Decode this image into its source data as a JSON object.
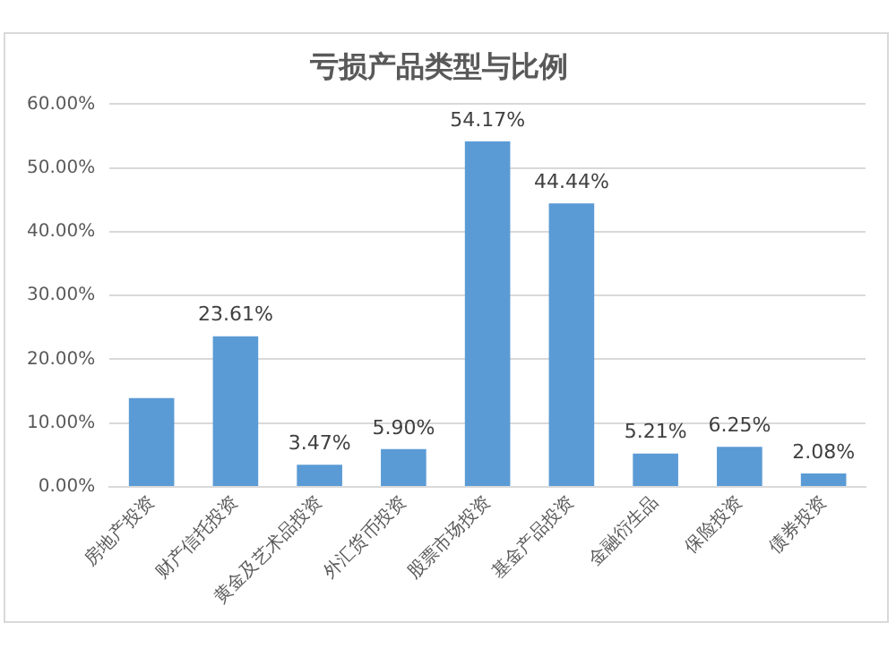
{
  "chart_data": {
    "type": "bar",
    "title": "亏损产品类型与比例",
    "categories": [
      "房地产投资",
      "财产信托投资",
      "黄金及艺术品投资",
      "外汇货币投资",
      "股票市场投资",
      "基金产品投资",
      "金融衍生品",
      "保险投资",
      "债券投资"
    ],
    "values": [
      13.9,
      23.61,
      3.47,
      5.9,
      54.17,
      44.44,
      5.21,
      6.25,
      2.08
    ],
    "value_labels": [
      null,
      "23.61%",
      "3.47%",
      "5.90%",
      "54.17%",
      "44.44%",
      "5.21%",
      "6.25%",
      "2.08%"
    ],
    "color": "#5b9bd5",
    "ylim": [
      0,
      60
    ],
    "yticks": [
      {
        "value": 0,
        "label": "0.00%"
      },
      {
        "value": 10,
        "label": "10.00%"
      },
      {
        "value": 20,
        "label": "20.00%"
      },
      {
        "value": 30,
        "label": "30.00%"
      },
      {
        "value": 40,
        "label": "40.00%"
      },
      {
        "value": 50,
        "label": "50.00%"
      },
      {
        "value": 60,
        "label": "60.00%"
      }
    ],
    "grid": "y"
  }
}
